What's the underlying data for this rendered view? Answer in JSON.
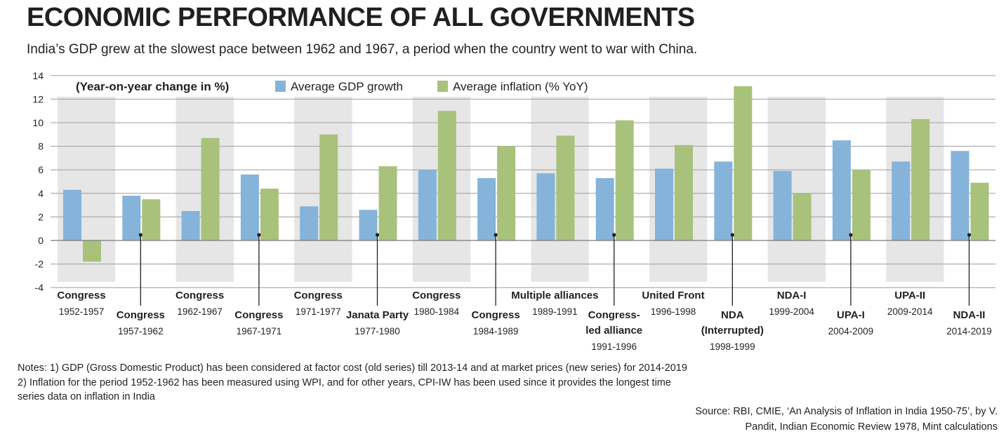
{
  "title": "ECONOMIC PERFORMANCE OF ALL GOVERNMENTS",
  "subtitle": "India’s GDP grew at the slowest pace between 1962 and 1967, a period when the country went to war with China.",
  "notes": [
    "Notes: 1) GDP (Gross Domestic Product) has been considered at factor cost (old series) till 2013-14 and at market prices (new series) for 2014-2019",
    "2) Inflation for the period 1952-1962 has been measured using WPI, and for other years, CPI-IW has been used since it provides the longest time",
    "series data on inflation in India"
  ],
  "source": [
    "Source: RBI, CMIE, ‘An Analysis of Inflation in India 1950-75’, by V.",
    "Pandit, Indian Economic Review 1978, Mint calculations"
  ],
  "chart_data": {
    "type": "bar",
    "legend_title": "(Year-on-year change in %)",
    "legend_position": "top-left",
    "ylim": [
      -4,
      14
    ],
    "yticks": [
      -4,
      -2,
      0,
      2,
      4,
      6,
      8,
      10,
      12,
      14
    ],
    "grid": true,
    "colors": {
      "gdp": "#86b3d9",
      "inflation": "#a8c27b",
      "band": "#e6e6e6",
      "grid": "#9d9d9d"
    },
    "categories": [
      {
        "party": [
          "Congress"
        ],
        "years": "1952-1957"
      },
      {
        "party": [
          "Congress"
        ],
        "years": "1957-1962"
      },
      {
        "party": [
          "Congress"
        ],
        "years": "1962-1967"
      },
      {
        "party": [
          "Congress"
        ],
        "years": "1967-1971"
      },
      {
        "party": [
          "Congress"
        ],
        "years": "1971-1977"
      },
      {
        "party": [
          "Janata Party"
        ],
        "years": "1977-1980"
      },
      {
        "party": [
          "Congress"
        ],
        "years": "1980-1984"
      },
      {
        "party": [
          "Congress"
        ],
        "years": "1984-1989"
      },
      {
        "party": [
          "Multiple alliances"
        ],
        "years": "1989-1991"
      },
      {
        "party": [
          "Congress-",
          "led alliance"
        ],
        "years": "1991-1996"
      },
      {
        "party": [
          "United Front"
        ],
        "years": "1996-1998"
      },
      {
        "party": [
          "NDA",
          "(Interrupted)"
        ],
        "years": "1998-1999"
      },
      {
        "party": [
          "NDA-I"
        ],
        "years": "1999-2004"
      },
      {
        "party": [
          "UPA-I"
        ],
        "years": "2004-2009"
      },
      {
        "party": [
          "UPA-II"
        ],
        "years": "2009-2014"
      },
      {
        "party": [
          "NDA-II"
        ],
        "years": "2014-2019"
      }
    ],
    "series": [
      {
        "name": "Average GDP growth",
        "values": [
          4.3,
          3.8,
          2.5,
          5.6,
          2.9,
          2.6,
          6.0,
          5.3,
          5.7,
          5.3,
          6.1,
          6.7,
          5.9,
          8.5,
          6.7,
          7.6
        ]
      },
      {
        "name": "Average inflation (% YoY)",
        "values": [
          -1.8,
          3.5,
          8.7,
          4.4,
          9.0,
          6.3,
          11.0,
          8.0,
          8.9,
          10.2,
          8.1,
          13.1,
          4.0,
          6.0,
          10.3,
          4.9
        ]
      }
    ]
  }
}
